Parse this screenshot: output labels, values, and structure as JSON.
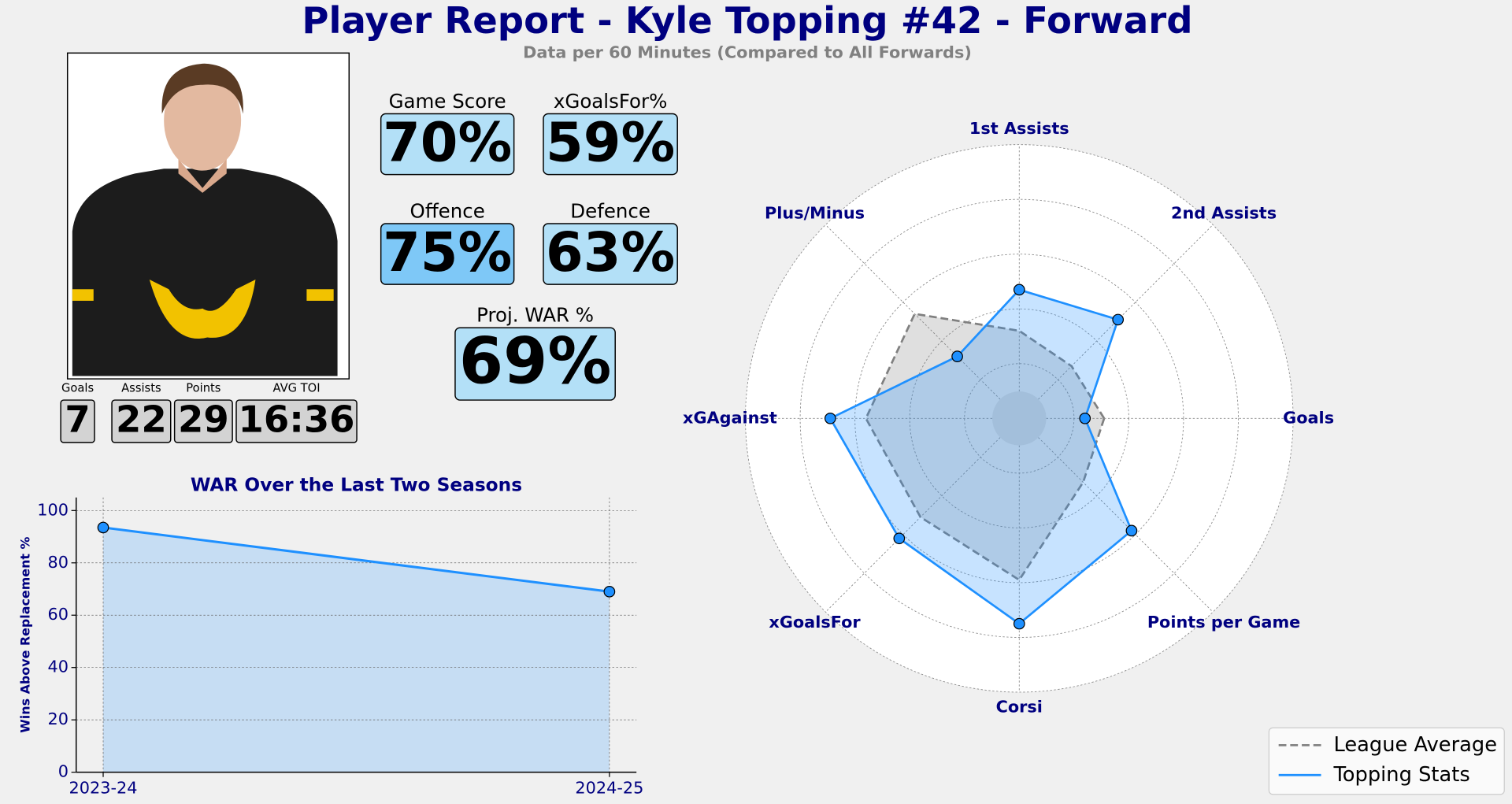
{
  "header": {
    "title": "Player Report - Kyle Topping #42 - Forward",
    "subtitle": "Data per 60 Minutes (Compared to All Forwards)"
  },
  "cards": [
    {
      "label": "Game Score",
      "value": "70%"
    },
    {
      "label": "xGoalsFor%",
      "value": "59%"
    },
    {
      "label": "Offence",
      "value": "75%"
    },
    {
      "label": "Defence",
      "value": "63%"
    },
    {
      "label": "Proj. WAR %",
      "value": "69%"
    }
  ],
  "stats": [
    {
      "label": "Goals",
      "value": 7
    },
    {
      "label": "Assists",
      "value": 22
    },
    {
      "label": "Points",
      "value": 29
    },
    {
      "label": "AVG TOI",
      "value": "16:36"
    }
  ],
  "chart_data": [
    {
      "type": "line",
      "title": "WAR Over the Last Two Seasons",
      "y_label": "Wins Above Replacement %",
      "categories": [
        "2023-24",
        "2024-25"
      ],
      "values": [
        93.5,
        69
      ],
      "color": "#1e90ff",
      "fill": true,
      "ylim": [
        0,
        105
      ],
      "yticks": [
        0,
        20,
        40,
        60,
        80,
        100
      ],
      "grid": true
    },
    {
      "type": "radar",
      "categories": [
        "Goals",
        "2nd Assists",
        "1st Assists",
        "Plus/Minus",
        "xGAgainst",
        "xGoalsFor",
        "Corsi",
        "Points per Game"
      ],
      "series": [
        {
          "name": "League Average",
          "color": "#808080",
          "style": "dashed",
          "values": [
            31,
            27,
            32,
            54,
            56,
            51,
            59,
            33
          ]
        },
        {
          "name": "Topping Stats",
          "color": "#1e90ff",
          "style": "solid",
          "values": [
            24,
            51,
            47,
            32,
            69,
            62,
            75,
            58
          ]
        }
      ],
      "rlim": [
        0,
        100
      ],
      "rticks": [
        20,
        40,
        60,
        80,
        100
      ],
      "grid": true,
      "legend": "lower right"
    }
  ]
}
